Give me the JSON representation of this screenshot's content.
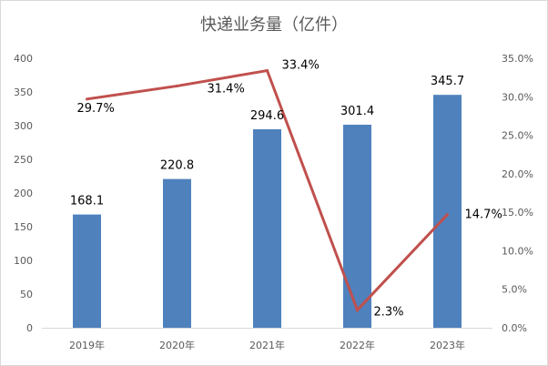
{
  "chart_data": {
    "type": "bar",
    "title": "快递业务量（亿件）",
    "categories": [
      "2019年",
      "2020年",
      "2021年",
      "2022年",
      "2023年"
    ],
    "series": [
      {
        "type": "bar",
        "values": [
          168.1,
          220.8,
          294.6,
          301.4,
          345.7
        ],
        "labels": [
          "168.1",
          "220.8",
          "294.6",
          "301.4",
          "345.7"
        ],
        "color": "#4f81bd",
        "axis": "left"
      },
      {
        "type": "line",
        "values": [
          29.7,
          31.4,
          33.4,
          2.3,
          14.7
        ],
        "labels": [
          "29.7%",
          "31.4%",
          "33.4%",
          "2.3%",
          "14.7%"
        ],
        "color": "#c0504d",
        "axis": "right"
      }
    ],
    "ylim": [
      0,
      400
    ],
    "y_ticks": [
      "0",
      "50",
      "100",
      "150",
      "200",
      "250",
      "300",
      "350",
      "400"
    ],
    "y2lim": [
      0,
      35
    ],
    "y2_ticks": [
      "0.0%",
      "5.0%",
      "10.0%",
      "15.0%",
      "20.0%",
      "25.0%",
      "30.0%",
      "35.0%"
    ],
    "grid": false,
    "legend": "none"
  }
}
